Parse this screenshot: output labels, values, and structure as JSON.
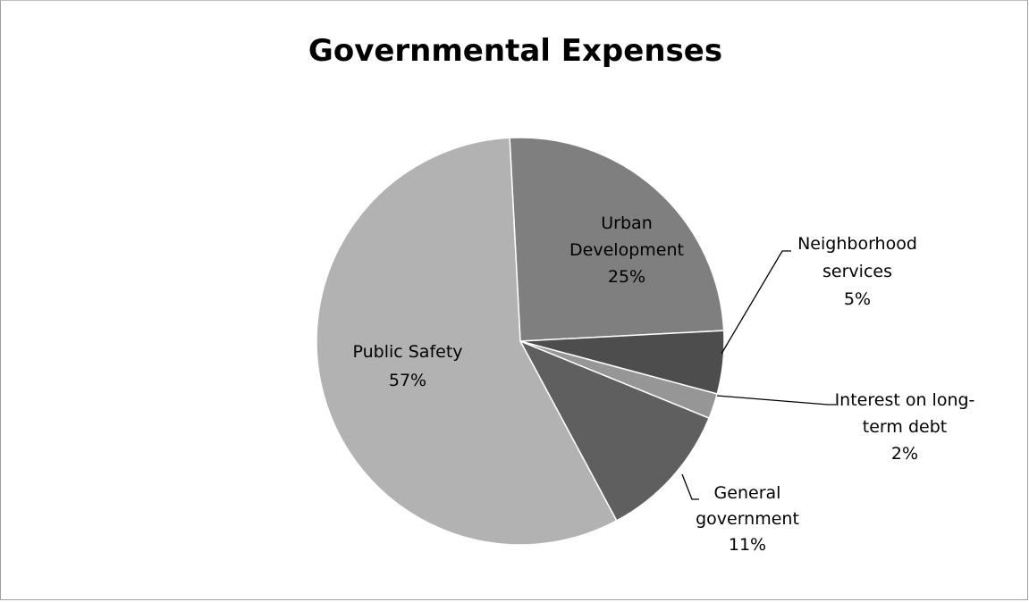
{
  "chart_data": {
    "type": "pie",
    "title": "Governmental Expenses",
    "slices": [
      {
        "name": "Urban Development",
        "value": 25,
        "label_lines": [
          "Urban",
          "Development",
          "25%"
        ],
        "color": "#7f7f7f"
      },
      {
        "name": "Neighborhood services",
        "value": 5,
        "label_lines": [
          "Neighborhood",
          "services",
          "5%"
        ],
        "color": "#4d4d4d"
      },
      {
        "name": "Interest on long-term debt",
        "value": 2,
        "label_lines": [
          "Interest on long-",
          "term debt",
          "2%"
        ],
        "color": "#969696"
      },
      {
        "name": "General government",
        "value": 11,
        "label_lines": [
          "General",
          "government",
          "11%"
        ],
        "color": "#5f5f5f"
      },
      {
        "name": "Public Safety",
        "value": 57,
        "label_lines": [
          "Public Safety",
          "57%"
        ],
        "color": "#b2b2b2"
      }
    ],
    "legend": "none"
  }
}
